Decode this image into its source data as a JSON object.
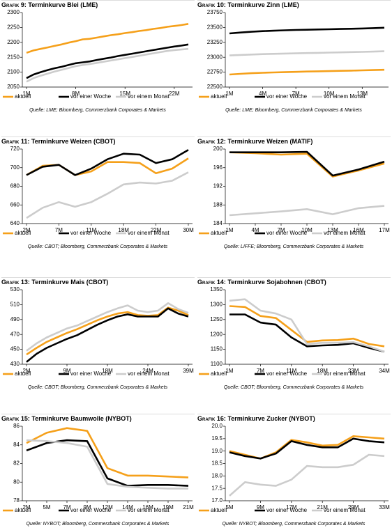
{
  "chart_data": [
    {
      "type": "line",
      "label": "Grafik 9:",
      "title": "Terminkurve Blei (LME)",
      "categories": [
        "1M",
        null,
        null,
        null,
        null,
        null,
        null,
        "8M",
        null,
        null,
        null,
        null,
        null,
        null,
        "15M",
        null,
        null,
        null,
        null,
        null,
        null,
        "22M",
        null,
        null
      ],
      "ylim": [
        2050,
        2300
      ],
      "yticks": [
        2050,
        2100,
        2150,
        2200,
        2250,
        2300
      ],
      "series": [
        {
          "name": "aktuell",
          "color": "#f5a01a",
          "values": [
            2165,
            2173,
            2178,
            2183,
            2188,
            2193,
            2199,
            2204,
            2210,
            2212,
            2216,
            2220,
            2224,
            2227,
            2231,
            2234,
            2238,
            2241,
            2245,
            2248,
            2252,
            2255,
            2258,
            2262
          ]
        },
        {
          "name": "vor einer Woche",
          "color": "#000000",
          "values": [
            2080,
            2092,
            2100,
            2107,
            2113,
            2118,
            2124,
            2130,
            2133,
            2136,
            2141,
            2145,
            2149,
            2154,
            2158,
            2162,
            2166,
            2170,
            2174,
            2178,
            2182,
            2186,
            2189,
            2193
          ]
        },
        {
          "name": "vor einem Monat",
          "color": "#cccccc",
          "values": [
            2068,
            2080,
            2088,
            2095,
            2102,
            2108,
            2114,
            2120,
            2124,
            2127,
            2131,
            2135,
            2139,
            2143,
            2147,
            2151,
            2155,
            2159,
            2163,
            2167,
            2171,
            2174,
            2176,
            2178
          ]
        }
      ],
      "source": "Quelle: LME; Bloomberg, Commerzbank Corporates & Markets"
    },
    {
      "type": "line",
      "label": "Grafik 10:",
      "title": "Terminkurve Zinn (LME)",
      "categories": [
        "1M",
        null,
        null,
        "4M",
        null,
        null,
        "7M",
        null,
        null,
        "10M",
        null,
        null,
        "13M",
        null,
        null
      ],
      "ylim": [
        22500,
        23750
      ],
      "yticks": [
        22500,
        22750,
        23000,
        23250,
        23500,
        23750
      ],
      "series": [
        {
          "name": "aktuell",
          "color": "#f5a01a",
          "values": [
            22710,
            22722,
            22732,
            22740,
            22745,
            22750,
            22755,
            22760,
            22764,
            22768,
            22772,
            22776,
            22780,
            22785,
            22790
          ]
        },
        {
          "name": "vor einer Woche",
          "color": "#000000",
          "values": [
            23400,
            23415,
            23428,
            23438,
            23445,
            23452,
            23458,
            23462,
            23466,
            23470,
            23474,
            23478,
            23482,
            23488,
            23495
          ]
        },
        {
          "name": "vor einem Monat",
          "color": "#cccccc",
          "values": [
            23030,
            23038,
            23045,
            23052,
            23057,
            23062,
            23066,
            23070,
            23074,
            23078,
            23082,
            23086,
            23090,
            23095,
            23100
          ]
        }
      ],
      "source": "Quelle: LME; Bloomberg, Commerzbank Corporates & Markets"
    },
    {
      "type": "line",
      "label": "Grafik 11:",
      "title": "Terminkurve Weizen (CBOT)",
      "categories": [
        "2M",
        null,
        "7M",
        null,
        "11M",
        null,
        "18M",
        null,
        "22M",
        null,
        "30M"
      ],
      "ylim": [
        640,
        720
      ],
      "yticks": [
        640,
        660,
        680,
        700,
        720
      ],
      "series": [
        {
          "name": "aktuell",
          "color": "#f5a01a",
          "values": [
            692,
            702,
            703,
            692,
            696,
            706,
            706,
            705,
            694,
            699,
            710
          ]
        },
        {
          "name": "vor einer Woche",
          "color": "#000000",
          "values": [
            692,
            701,
            703,
            692,
            699,
            709,
            715,
            714,
            705,
            709,
            719
          ]
        },
        {
          "name": "vor einem Monat",
          "color": "#cccccc",
          "values": [
            646,
            657,
            663,
            658,
            663,
            672,
            682,
            684,
            683,
            686,
            695
          ]
        }
      ],
      "source": "Quelle: CBOT; Bloomberg, Commerzbank Corporates & Markets"
    },
    {
      "type": "line",
      "label": "Grafik 12:",
      "title": "Terminkurve Weizen (MATIF)",
      "categories": [
        "1M",
        "4M",
        "7M",
        "10M",
        "13M",
        "16M",
        "17M"
      ],
      "ylim": [
        184,
        200
      ],
      "yticks": [
        184,
        188,
        192,
        196,
        200
      ],
      "series": [
        {
          "name": "aktuell",
          "color": "#f5a01a",
          "values": [
            199.3,
            199.1,
            198.8,
            199.0,
            194.1,
            195.4,
            196.9
          ]
        },
        {
          "name": "vor einer Woche",
          "color": "#000000",
          "values": [
            199.3,
            199.3,
            199.3,
            199.4,
            194.3,
            195.6,
            197.3
          ]
        },
        {
          "name": "vor einem Monat",
          "color": "#cccccc",
          "values": [
            185.8,
            186.2,
            186.6,
            187.1,
            186.0,
            187.3,
            187.8
          ]
        }
      ],
      "source": "Quelle: LIFFE; Bloomberg, Commerzbank Corporates & Markets"
    },
    {
      "type": "line",
      "label": "Grafik 13:",
      "title": "Terminkurve Mais (CBOT)",
      "categories": [
        "2M",
        null,
        null,
        null,
        "9M",
        null,
        null,
        null,
        "18M",
        null,
        null,
        null,
        "24M",
        null,
        null,
        null,
        "39M"
      ],
      "ylim": [
        430,
        530
      ],
      "yticks": [
        430,
        450,
        470,
        490,
        510,
        530
      ],
      "series": [
        {
          "name": "aktuell",
          "color": "#f5a01a",
          "values": [
            443,
            452,
            460,
            466,
            472,
            477,
            483,
            489,
            494,
            498,
            500,
            496,
            495,
            496,
            506,
            502,
            496
          ]
        },
        {
          "name": "vor einer Woche",
          "color": "#000000",
          "values": [
            433,
            444,
            452,
            458,
            464,
            469,
            476,
            483,
            489,
            494,
            497,
            494,
            494,
            494,
            505,
            498,
            494
          ]
        },
        {
          "name": "vor einem Monat",
          "color": "#cccccc",
          "values": [
            448,
            458,
            466,
            472,
            478,
            482,
            488,
            494,
            500,
            505,
            509,
            502,
            500,
            502,
            512,
            504,
            499
          ]
        }
      ],
      "source": "Quelle: CBOT; Bloomberg, Commerzbank Corporates & Markets"
    },
    {
      "type": "line",
      "label": "Grafik 14:",
      "title": "Terminkurve Sojabohnen (CBOT)",
      "categories": [
        "1M",
        null,
        "7M",
        null,
        "11M",
        null,
        "18M",
        null,
        "23M",
        null,
        "34M"
      ],
      "ylim": [
        1100,
        1350
      ],
      "yticks": [
        1100,
        1150,
        1200,
        1250,
        1300,
        1350
      ],
      "series": [
        {
          "name": "aktuell",
          "color": "#f5a01a",
          "values": [
            1295,
            1292,
            1262,
            1255,
            1215,
            1175,
            1180,
            1181,
            1186,
            1168,
            1160
          ]
        },
        {
          "name": "vor einer Woche",
          "color": "#000000",
          "values": [
            1267,
            1267,
            1240,
            1233,
            1190,
            1160,
            1163,
            1165,
            1170,
            1155,
            1142
          ]
        },
        {
          "name": "vor einem Monat",
          "color": "#cccccc",
          "values": [
            1313,
            1318,
            1280,
            1270,
            1250,
            1168,
            1172,
            1172,
            1174,
            1160,
            1142
          ]
        }
      ],
      "source": "Quelle: CBOT; Bloomberg, Commerzbank Corporates & Markets"
    },
    {
      "type": "line",
      "label": "Grafik 15:",
      "title": "Terminkurve Baumwolle (NYBOT)",
      "categories": [
        "2M",
        "5M",
        "7M",
        "9M",
        "12M",
        "14M",
        "16M",
        "19M",
        "21M"
      ],
      "ylim": [
        78,
        86
      ],
      "yticks": [
        78,
        80,
        82,
        84,
        86
      ],
      "series": [
        {
          "name": "aktuell",
          "color": "#f5a01a",
          "values": [
            84.2,
            85.3,
            85.8,
            85.5,
            81.5,
            80.7,
            80.7,
            80.6,
            80.5
          ]
        },
        {
          "name": "vor einer Woche",
          "color": "#000000",
          "values": [
            83.4,
            84.2,
            84.5,
            84.4,
            80.4,
            79.6,
            79.7,
            79.7,
            79.6
          ]
        },
        {
          "name": "vor einem Monat",
          "color": "#cccccc",
          "values": [
            84.5,
            84.4,
            84.2,
            83.8,
            79.8,
            79.5,
            79.4,
            79.3,
            79.3
          ]
        }
      ],
      "source": "Quelle: NYBOT; Bloomberg, Commerzbank Corporates & Markets"
    },
    {
      "type": "line",
      "label": "Grafik 16:",
      "title": "Terminkurve Zucker (NYBOT)",
      "categories": [
        "5M",
        null,
        "9M",
        null,
        "17M",
        null,
        "21M",
        null,
        "29M",
        null,
        "33M"
      ],
      "ylim": [
        17,
        20
      ],
      "yticks": [
        {
          "value": 17,
          "label": "17.0"
        },
        17.5,
        {
          "value": 18,
          "label": "18.0"
        },
        18.5,
        {
          "value": 19,
          "label": "19.0"
        },
        19.5,
        {
          "value": 20,
          "label": "20.0"
        }
      ],
      "series": [
        {
          "name": "aktuell",
          "color": "#f5a01a",
          "values": [
            19.0,
            18.85,
            18.7,
            18.95,
            19.45,
            19.35,
            19.22,
            19.25,
            19.6,
            19.55,
            19.5
          ]
        },
        {
          "name": "vor einer Woche",
          "color": "#000000",
          "values": [
            18.95,
            18.8,
            18.7,
            18.9,
            19.4,
            19.25,
            19.15,
            19.15,
            19.5,
            19.4,
            19.35
          ]
        },
        {
          "name": "vor einem Monat",
          "color": "#cccccc",
          "values": [
            17.2,
            17.75,
            17.65,
            17.6,
            17.85,
            18.4,
            18.35,
            18.35,
            18.45,
            18.85,
            18.8
          ]
        }
      ],
      "source": "Quelle: NYBOT; Bloomberg, Commerzbank Corporates & Markets"
    }
  ]
}
